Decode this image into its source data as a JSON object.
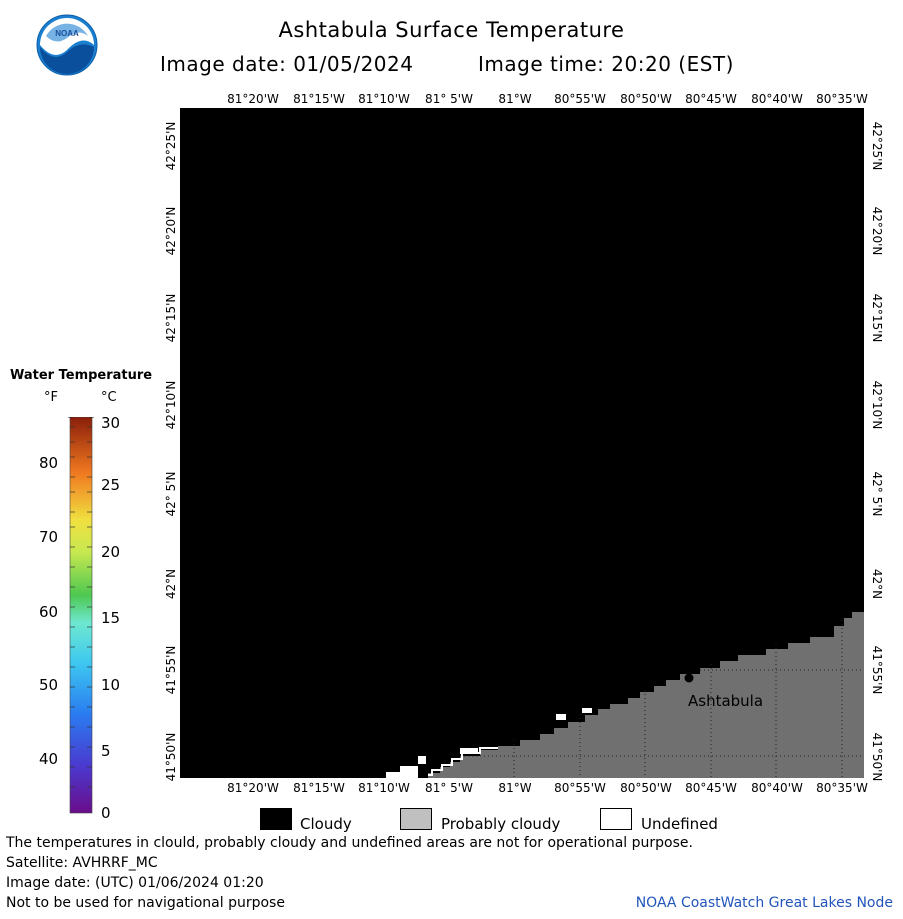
{
  "header": {
    "title": "Ashtabula Surface Temperature",
    "image_date": "Image date: 01/05/2024",
    "image_time": "Image time: 20:20 (EST)"
  },
  "logo": {
    "text": "NOAA",
    "icon": "noaa-logo-icon"
  },
  "map": {
    "lon_labels": [
      "81°20'W",
      "81°15'W",
      "81°10'W",
      "81° 5'W",
      "81°W",
      "80°55'W",
      "80°50'W",
      "80°45'W",
      "80°40'W",
      "80°35'W"
    ],
    "lat_labels": [
      "42°25'N",
      "42°20'N",
      "42°15'N",
      "42°10'N",
      "42° 5'N",
      "42°N",
      "41°55'N",
      "41°50'N"
    ],
    "place_label": "Ashtabula",
    "colors": {
      "cloudy": "#000000",
      "probably_cloudy": "#707070",
      "grid": "#222222"
    }
  },
  "scale": {
    "title": "Water Temperature",
    "unit_f": "°F",
    "unit_c": "°C",
    "f_ticks": [
      "80",
      "70",
      "60",
      "50",
      "40"
    ],
    "c_ticks": [
      "30",
      "25",
      "20",
      "15",
      "10",
      "5",
      "0"
    ]
  },
  "legend": {
    "cloudy": "Cloudy",
    "probably_cloudy": "Probably cloudy",
    "undefined": "Undefined",
    "colors": {
      "cloudy": "#000000",
      "probably_cloudy": "#c0c0c0",
      "undefined": "#ffffff"
    }
  },
  "footer": {
    "line1": "The temperatures in clould, probably cloudy and undefined areas are not for operational purpose.",
    "line2": "Satellite: AVHRRF_MC",
    "line3": "Image date: (UTC) 01/06/2024  01:20",
    "line4": "Not to be used for navigational purpose",
    "credit": "NOAA CoastWatch Great Lakes Node"
  }
}
